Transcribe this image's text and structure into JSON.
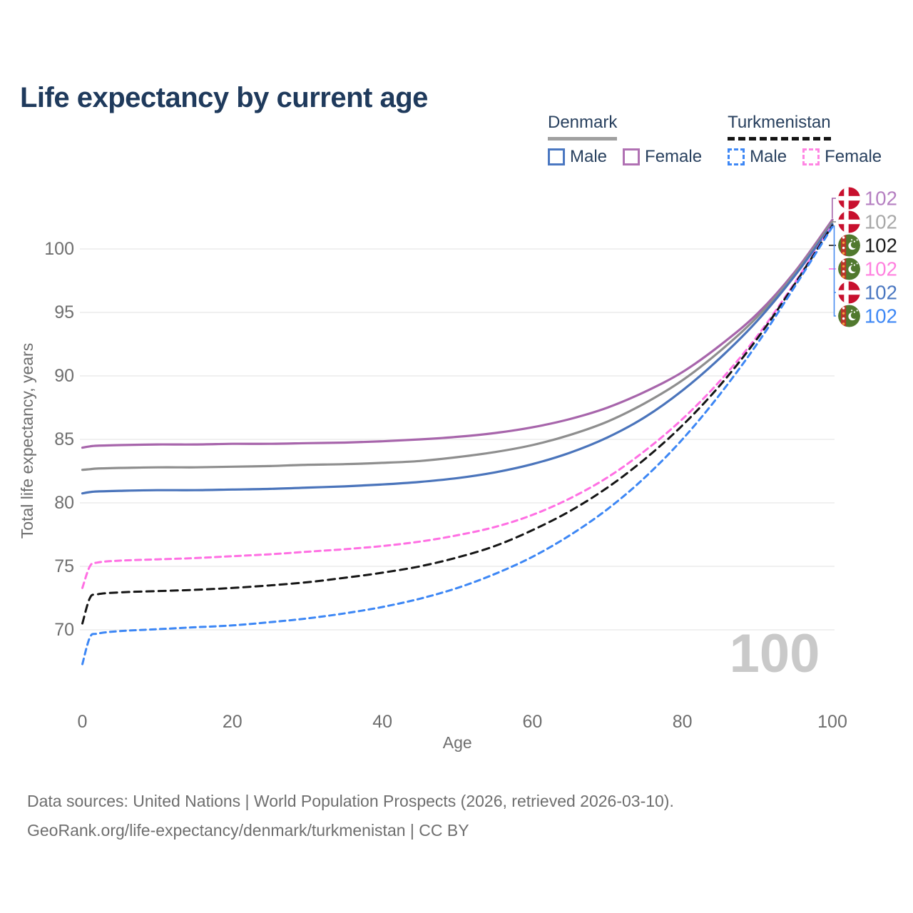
{
  "title": "Life expectancy by current age",
  "legend": {
    "denmark": {
      "label": "Denmark",
      "male": "Male",
      "female": "Female"
    },
    "turkmenistan": {
      "label": "Turkmenistan",
      "male": "Male",
      "female": "Female"
    }
  },
  "watermark": "100",
  "footer": {
    "line1": "Data sources: United Nations | World Population Prospects (2026, retrieved 2026-03-10).",
    "line2": "GeoRank.org/life-expectancy/denmark/turkmenistan | CC BY"
  },
  "colors": {
    "title_text": "#1f3a5c",
    "legend_text": "#28405e",
    "axis_text": "#6e6e6e",
    "gridline": "#e8e8e8",
    "watermark": "#c9c9c9",
    "footer_text": "#6e6e6e",
    "denmark_underline": "#a0a0a0",
    "turkmenistan_underline": "#141414"
  },
  "chart_data": {
    "type": "line",
    "title": "Life expectancy by current age",
    "xlabel": "Age",
    "ylabel": "Total life expectancy, years",
    "xlim": [
      0,
      100
    ],
    "ylim": [
      66.5,
      103.5
    ],
    "x_ticks": [
      0,
      20,
      40,
      60,
      80,
      100
    ],
    "y_ticks": [
      70,
      75,
      80,
      85,
      90,
      95,
      100
    ],
    "grid": "horizontal-only",
    "legend_position": "top-right",
    "x": [
      0,
      1,
      2,
      5,
      10,
      15,
      20,
      25,
      30,
      35,
      40,
      45,
      50,
      55,
      60,
      65,
      70,
      75,
      80,
      85,
      90,
      95,
      100
    ],
    "series": [
      {
        "name": "Denmark Female",
        "slug": "denmark-female",
        "country": "denmark",
        "sex": "female",
        "color": "#a765ab",
        "dash": null,
        "values": [
          84.35,
          84.45,
          84.5,
          84.55,
          84.6,
          84.6,
          84.65,
          84.65,
          84.7,
          84.75,
          84.85,
          85.0,
          85.2,
          85.5,
          85.95,
          86.6,
          87.5,
          88.75,
          90.3,
          92.4,
          94.9,
          98.2,
          102.3
        ]
      },
      {
        "name": "Denmark",
        "slug": "denmark-total",
        "country": "denmark",
        "sex": "both",
        "color": "#8e8e8e",
        "dash": null,
        "values": [
          82.6,
          82.65,
          82.7,
          82.75,
          82.8,
          82.8,
          82.85,
          82.9,
          83.0,
          83.05,
          83.15,
          83.3,
          83.6,
          84.0,
          84.55,
          85.35,
          86.4,
          87.85,
          89.65,
          91.95,
          94.65,
          98.05,
          102.15
        ]
      },
      {
        "name": "Denmark Male",
        "slug": "denmark-male",
        "country": "denmark",
        "sex": "male",
        "color": "#4a74bb",
        "dash": null,
        "values": [
          80.75,
          80.85,
          80.9,
          80.95,
          81.0,
          81.0,
          81.05,
          81.1,
          81.2,
          81.3,
          81.45,
          81.65,
          81.95,
          82.4,
          83.05,
          83.95,
          85.15,
          86.75,
          88.85,
          91.4,
          94.35,
          97.9,
          101.95
        ]
      },
      {
        "name": "Turkmenistan Female",
        "slug": "turkmenistan-female",
        "country": "turkmenistan",
        "sex": "female",
        "color": "#ff6fe3",
        "dash": "8 6",
        "values": [
          73.3,
          75.0,
          75.3,
          75.45,
          75.55,
          75.65,
          75.8,
          75.95,
          76.15,
          76.35,
          76.6,
          76.95,
          77.45,
          78.1,
          79.05,
          80.35,
          82.0,
          84.1,
          86.6,
          89.6,
          93.15,
          97.35,
          101.9
        ]
      },
      {
        "name": "Turkmenistan",
        "slug": "turkmenistan-total",
        "country": "turkmenistan",
        "sex": "both",
        "color": "#151515",
        "dash": "10 7",
        "values": [
          70.5,
          72.5,
          72.8,
          72.95,
          73.05,
          73.15,
          73.3,
          73.5,
          73.75,
          74.1,
          74.5,
          75.0,
          75.7,
          76.6,
          77.85,
          79.35,
          81.2,
          83.45,
          86.1,
          89.25,
          92.95,
          97.25,
          101.85
        ]
      },
      {
        "name": "Turkmenistan Male",
        "slug": "turkmenistan-male",
        "country": "turkmenistan",
        "sex": "male",
        "color": "#3d87f5",
        "dash": "8 6",
        "values": [
          67.3,
          69.4,
          69.7,
          69.9,
          70.05,
          70.2,
          70.35,
          70.6,
          70.9,
          71.3,
          71.8,
          72.45,
          73.3,
          74.4,
          75.75,
          77.45,
          79.5,
          82.0,
          85.0,
          88.55,
          92.55,
          97.05,
          101.75
        ]
      }
    ],
    "end_labels": [
      {
        "text": "102",
        "flag": "denmark",
        "color": "#b57fc1",
        "series": "Denmark Female"
      },
      {
        "text": "102",
        "flag": "denmark",
        "color": "#a8a8a8",
        "series": "Denmark"
      },
      {
        "text": "102",
        "flag": "turkmenistan",
        "color": "#1a1a1a",
        "series": "Turkmenistan"
      },
      {
        "text": "102",
        "flag": "turkmenistan",
        "color": "#ff80df",
        "series": "Turkmenistan Female"
      },
      {
        "text": "102",
        "flag": "denmark",
        "color": "#4a77c1",
        "series": "Denmark Male"
      },
      {
        "text": "102",
        "flag": "turkmenistan",
        "color": "#3d87f5",
        "series": "Turkmenistan Male"
      }
    ]
  }
}
